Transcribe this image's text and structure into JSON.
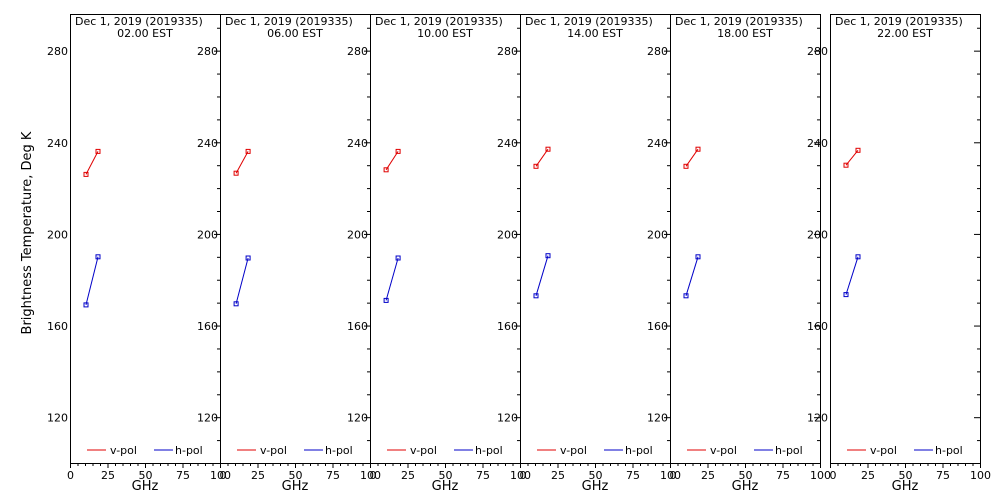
{
  "chart_data": {
    "type": "line",
    "ylabel": "Brightness Temperature, Deg K",
    "xlabel": "GHz",
    "xlim": [
      0,
      100
    ],
    "ylim": [
      100,
      296
    ],
    "yticks": [
      120,
      160,
      200,
      240,
      280
    ],
    "xticks": [
      0,
      25,
      50,
      75,
      100
    ],
    "xtick_labels": [
      "0",
      "25",
      "50",
      "75",
      "100"
    ],
    "grid": false,
    "legend_placement": "bottom",
    "colors": {
      "v_pol": "#e00000",
      "h_pol": "#0000c8",
      "axes": "#000000"
    },
    "panels": [
      {
        "title_date": "Dec  1, 2019 (2019335)",
        "title_time": "02.00 EST",
        "series": [
          {
            "name": "v-pol",
            "x": [
              10.7,
              18.7
            ],
            "y": [
              226,
              236
            ]
          },
          {
            "name": "h-pol",
            "x": [
              10.7,
              18.7
            ],
            "y": [
              169,
              190
            ]
          }
        ]
      },
      {
        "title_date": "Dec  1, 2019 (2019335)",
        "title_time": "06.00 EST",
        "series": [
          {
            "name": "v-pol",
            "x": [
              10.7,
              18.7
            ],
            "y": [
              226.5,
              236
            ]
          },
          {
            "name": "h-pol",
            "x": [
              10.7,
              18.7
            ],
            "y": [
              169.5,
              189.5
            ]
          }
        ]
      },
      {
        "title_date": "Dec  1, 2019 (2019335)",
        "title_time": "10.00 EST",
        "series": [
          {
            "name": "v-pol",
            "x": [
              10.7,
              18.7
            ],
            "y": [
              228,
              236
            ]
          },
          {
            "name": "h-pol",
            "x": [
              10.7,
              18.7
            ],
            "y": [
              171,
              189.5
            ]
          }
        ]
      },
      {
        "title_date": "Dec  1, 2019 (2019335)",
        "title_time": "14.00 EST",
        "series": [
          {
            "name": "v-pol",
            "x": [
              10.7,
              18.7
            ],
            "y": [
              229.5,
              237
            ]
          },
          {
            "name": "h-pol",
            "x": [
              10.7,
              18.7
            ],
            "y": [
              173,
              190.5
            ]
          }
        ]
      },
      {
        "title_date": "Dec  1, 2019 (2019335)",
        "title_time": "18.00 EST",
        "series": [
          {
            "name": "v-pol",
            "x": [
              10.7,
              18.7
            ],
            "y": [
              229.5,
              237
            ]
          },
          {
            "name": "h-pol",
            "x": [
              10.7,
              18.7
            ],
            "y": [
              173,
              190
            ]
          }
        ]
      },
      {
        "title_date": "Dec  1, 2019 (2019335)",
        "title_time": "22.00 EST",
        "series": [
          {
            "name": "v-pol",
            "x": [
              10.7,
              18.7
            ],
            "y": [
              230,
              236.5
            ]
          },
          {
            "name": "h-pol",
            "x": [
              10.7,
              18.7
            ],
            "y": [
              173.5,
              190
            ]
          }
        ]
      }
    ]
  }
}
